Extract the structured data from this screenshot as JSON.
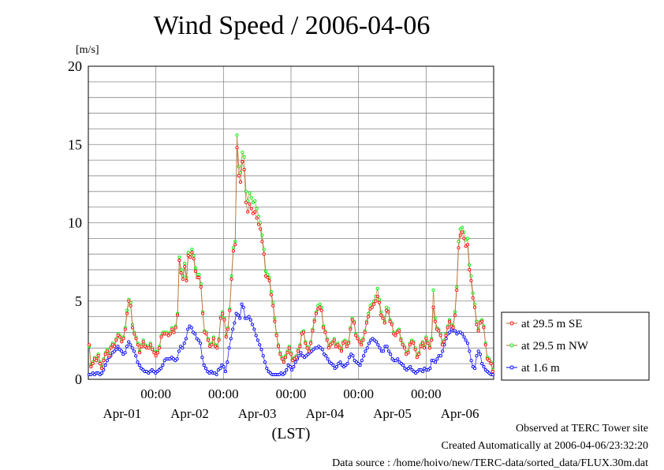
{
  "title": "Wind Speed / 2006-04-06",
  "unit_label": "[m/s]",
  "footer": {
    "site": "Observed at TERC Tower site",
    "created": "Created Automatically at 2006-04-06/23:32:20",
    "source": "Data source : /home/hoivo/new/TERC-data/sorted_data/FLUX.30m.dat"
  },
  "colors": {
    "se": "#ff0000",
    "nw": "#00ee00",
    "low": "#0000ff",
    "line": "#b07030",
    "grid": "#8a8a8a"
  },
  "chart_data": {
    "type": "line",
    "title": "Wind Speed / 2006-04-06",
    "ylabel": "[m/s]",
    "xlabel": "(LST)",
    "ylim": [
      0,
      20
    ],
    "yticks": [
      0,
      5,
      10,
      15,
      20
    ],
    "xlim_days": [
      0,
      6
    ],
    "x_time_ticks": [
      "00:00",
      "00:00",
      "00:00",
      "00:00",
      "00:00"
    ],
    "x_date_ticks": [
      "Apr-01",
      "Apr-02",
      "Apr-03",
      "Apr-04",
      "Apr-05",
      "Apr-06"
    ],
    "grid": true,
    "legend_position": "right",
    "series": [
      {
        "name": "at 29.5 m SE",
        "key": "se",
        "values": [
          2.2,
          0.8,
          1.0,
          1.3,
          1.2,
          1.5,
          1.0,
          0.7,
          1.2,
          1.6,
          1.8,
          1.5,
          2.0,
          2.2,
          2.1,
          2.5,
          2.8,
          2.7,
          2.4,
          2.6,
          3.2,
          4.2,
          5.0,
          4.7,
          3.3,
          2.9,
          2.6,
          2.2,
          1.7,
          2.1,
          2.4,
          2.1,
          2.0,
          2.0,
          2.2,
          1.9,
          1.7,
          1.5,
          1.7,
          2.0,
          2.7,
          2.9,
          2.9,
          2.9,
          2.8,
          2.9,
          3.2,
          3.0,
          3.3,
          4.1,
          7.6,
          6.8,
          6.4,
          7.2,
          6.3,
          7.9,
          7.8,
          8.1,
          7.7,
          6.9,
          6.5,
          6.5,
          5.9,
          4.2,
          3.0,
          2.9,
          2.5,
          2.1,
          2.2,
          2.6,
          2.1,
          2.0,
          2.5,
          3.9,
          4.2,
          3.8,
          2.7,
          3.2,
          4.4,
          6.4,
          8.2,
          8.6,
          14.8,
          13.0,
          12.6,
          13.9,
          13.4,
          11.3,
          10.7,
          11.2,
          10.9,
          10.6,
          10.7,
          10.3,
          9.9,
          9.6,
          8.8,
          8.0,
          6.6,
          6.5,
          6.3,
          5.4,
          4.7,
          3.7,
          2.8,
          2.1,
          1.6,
          1.3,
          1.1,
          1.4,
          1.7,
          2.0,
          1.6,
          1.2,
          1.3,
          1.4,
          1.8,
          2.1,
          2.9,
          3.0,
          2.3,
          2.0,
          1.8,
          2.3,
          3.1,
          3.7,
          4.2,
          4.5,
          4.6,
          4.4,
          3.3,
          3.0,
          2.5,
          2.0,
          2.2,
          2.3,
          2.5,
          2.1,
          2.2,
          2.0,
          1.8,
          2.3,
          2.4,
          2.1,
          2.3,
          3.2,
          3.8,
          3.6,
          2.8,
          2.6,
          2.4,
          2.2,
          2.5,
          3.0,
          3.6,
          4.0,
          4.5,
          4.6,
          4.8,
          5.0,
          5.3,
          4.9,
          4.1,
          3.9,
          3.6,
          4.4,
          4.3,
          3.7,
          3.5,
          2.9,
          2.8,
          3.0,
          3.1,
          2.5,
          2.2,
          2.0,
          1.6,
          1.7,
          2.2,
          2.4,
          2.3,
          1.9,
          1.4,
          1.6,
          2.1,
          2.3,
          2.0,
          2.6,
          2.3,
          2.0,
          2.5,
          4.6,
          3.7,
          3.2,
          3.1,
          2.8,
          2.2,
          2.4,
          2.8,
          3.3,
          3.7,
          3.4,
          3.3,
          4.1,
          5.7,
          8.4,
          9.2,
          9.4,
          9.0,
          8.5,
          8.6,
          7.0,
          6.3,
          5.2,
          4.6,
          3.5,
          3.1,
          3.6,
          3.7,
          3.3,
          2.2,
          1.3,
          1.2,
          1.0,
          0.5
        ]
      },
      {
        "name": "at 29.5 m NW",
        "key": "nw",
        "values": [
          2.1,
          0.9,
          1.1,
          1.4,
          1.3,
          1.6,
          1.1,
          0.8,
          1.3,
          1.7,
          1.9,
          1.6,
          2.1,
          2.3,
          2.2,
          2.6,
          2.9,
          2.8,
          2.5,
          2.7,
          3.3,
          4.4,
          5.1,
          4.9,
          3.5,
          3.0,
          2.7,
          2.3,
          1.8,
          2.2,
          2.5,
          2.2,
          2.1,
          2.1,
          2.3,
          2.0,
          1.8,
          1.6,
          1.8,
          2.1,
          2.8,
          3.0,
          3.0,
          3.0,
          2.9,
          3.0,
          3.3,
          3.1,
          3.4,
          4.2,
          7.8,
          7.0,
          6.6,
          7.4,
          6.5,
          8.1,
          8.0,
          8.3,
          7.9,
          7.1,
          6.7,
          6.7,
          6.1,
          4.3,
          3.1,
          3.0,
          2.6,
          2.2,
          2.3,
          2.7,
          2.2,
          2.1,
          2.6,
          4.0,
          4.3,
          3.9,
          2.8,
          3.3,
          4.5,
          6.6,
          8.4,
          8.8,
          15.6,
          13.6,
          13.2,
          14.5,
          14.2,
          12.0,
          11.4,
          11.9,
          11.6,
          11.3,
          11.4,
          10.9,
          10.4,
          10.0,
          9.2,
          8.3,
          6.9,
          6.7,
          6.5,
          5.6,
          4.9,
          3.9,
          2.9,
          2.2,
          1.7,
          1.4,
          1.2,
          1.5,
          1.8,
          2.1,
          1.7,
          1.3,
          1.4,
          1.5,
          1.9,
          2.2,
          3.0,
          3.1,
          2.4,
          2.1,
          1.9,
          2.4,
          3.2,
          3.8,
          4.3,
          4.7,
          4.8,
          4.6,
          3.4,
          3.1,
          2.6,
          2.1,
          2.3,
          2.4,
          2.6,
          2.2,
          2.3,
          2.1,
          1.9,
          2.4,
          2.5,
          2.2,
          2.4,
          3.3,
          3.9,
          3.7,
          2.9,
          2.7,
          2.5,
          2.3,
          2.6,
          3.1,
          3.7,
          4.2,
          4.7,
          4.8,
          5.0,
          5.3,
          5.8,
          5.1,
          4.3,
          4.0,
          3.7,
          4.6,
          4.5,
          3.8,
          3.6,
          3.0,
          2.9,
          3.1,
          3.2,
          2.6,
          2.3,
          2.1,
          1.7,
          1.8,
          2.3,
          2.5,
          2.4,
          2.0,
          1.5,
          1.7,
          2.2,
          2.4,
          2.1,
          2.7,
          2.4,
          2.1,
          2.6,
          5.7,
          3.9,
          3.3,
          3.2,
          2.9,
          2.3,
          2.5,
          2.9,
          3.4,
          3.8,
          3.5,
          3.4,
          4.3,
          5.9,
          8.8,
          9.6,
          9.7,
          9.4,
          8.9,
          9.0,
          7.3,
          6.6,
          5.5,
          4.8,
          3.7,
          3.2,
          3.7,
          3.8,
          3.4,
          2.3,
          1.4,
          1.3,
          1.1,
          0.6
        ]
      },
      {
        "name": "at 1.6 m",
        "key": "low",
        "values": [
          0.3,
          0.3,
          0.4,
          0.3,
          0.4,
          0.4,
          0.3,
          0.4,
          0.6,
          0.9,
          1.2,
          1.4,
          1.5,
          1.7,
          1.8,
          1.9,
          2.1,
          1.9,
          1.8,
          1.6,
          1.7,
          2.1,
          2.4,
          2.2,
          2.0,
          1.8,
          1.5,
          1.1,
          0.9,
          0.7,
          0.6,
          0.5,
          0.5,
          0.4,
          0.5,
          0.6,
          0.5,
          0.4,
          0.5,
          0.6,
          0.7,
          0.9,
          1.2,
          1.3,
          1.3,
          1.3,
          1.4,
          1.3,
          1.2,
          1.3,
          1.8,
          2.1,
          2.0,
          2.3,
          2.6,
          3.2,
          3.4,
          3.3,
          3.0,
          2.9,
          2.6,
          2.5,
          2.3,
          1.4,
          0.9,
          0.7,
          0.5,
          0.4,
          0.5,
          0.4,
          0.4,
          0.3,
          0.6,
          0.7,
          0.9,
          0.8,
          0.5,
          1.1,
          2.0,
          2.6,
          3.2,
          3.6,
          4.2,
          4.1,
          3.9,
          4.8,
          4.6,
          3.9,
          3.9,
          4.0,
          3.8,
          3.5,
          3.2,
          2.8,
          2.5,
          2.2,
          1.9,
          1.5,
          1.1,
          0.7,
          0.5,
          0.4,
          0.3,
          0.3,
          0.3,
          0.3,
          0.3,
          0.4,
          0.3,
          0.4,
          0.6,
          0.9,
          0.8,
          0.6,
          0.8,
          1.1,
          1.3,
          1.5,
          1.7,
          1.5,
          1.4,
          1.5,
          1.6,
          1.7,
          1.8,
          1.9,
          2.0,
          2.0,
          2.1,
          2.0,
          1.9,
          1.6,
          1.5,
          1.3,
          1.1,
          1.0,
          0.9,
          0.7,
          0.8,
          1.0,
          1.1,
          0.9,
          0.8,
          0.9,
          1.0,
          1.4,
          1.6,
          1.5,
          1.2,
          1.1,
          1.0,
          0.9,
          1.2,
          1.5,
          1.8,
          2.0,
          2.3,
          2.5,
          2.6,
          2.5,
          2.4,
          2.2,
          2.0,
          1.8,
          1.8,
          2.1,
          2.1,
          1.8,
          1.6,
          1.3,
          1.2,
          1.2,
          1.3,
          1.1,
          1.0,
          0.9,
          0.7,
          0.6,
          0.7,
          0.8,
          0.6,
          0.5,
          0.4,
          0.5,
          0.6,
          0.6,
          0.5,
          0.7,
          0.6,
          0.6,
          0.7,
          1.2,
          1.2,
          1.1,
          1.3,
          1.5,
          1.5,
          1.8,
          2.2,
          2.6,
          2.9,
          3.0,
          3.2,
          3.1,
          3.1,
          2.9,
          3.0,
          3.0,
          2.9,
          2.7,
          2.5,
          2.3,
          1.8,
          1.2,
          0.8,
          0.7,
          1.5,
          1.8,
          1.6,
          1.0,
          0.8,
          0.6,
          0.5,
          0.4,
          0.3,
          0.3
        ]
      }
    ]
  }
}
